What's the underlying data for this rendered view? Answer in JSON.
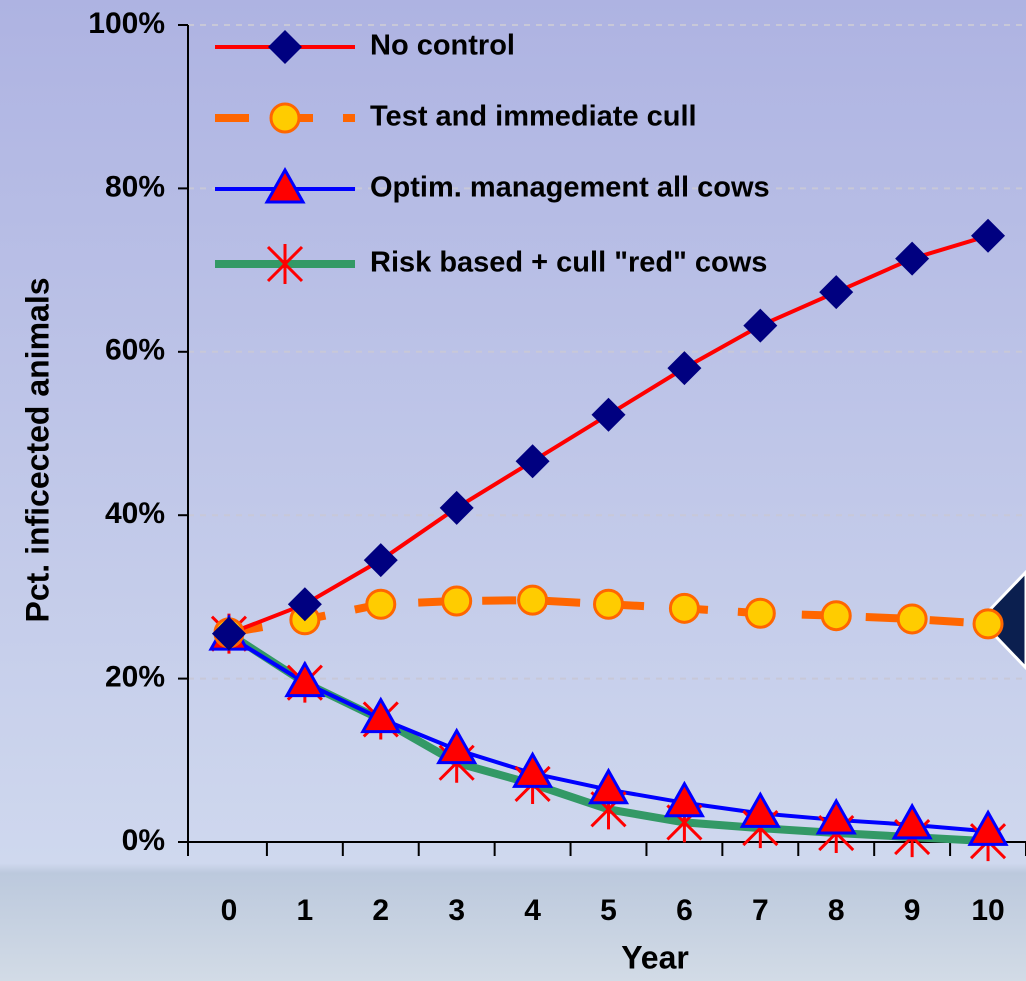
{
  "chart_data": {
    "type": "line",
    "y_label": "Pct. inficected animals",
    "x_label": "Year",
    "categories": [
      "0",
      "1",
      "2",
      "3",
      "4",
      "5",
      "6",
      "7",
      "8",
      "9",
      "10"
    ],
    "series": [
      {
        "name": "No control",
        "color": "#ff0000",
        "marker": "diamond",
        "marker_color": "#000080",
        "values": [
          25.5,
          29.1,
          34.5,
          40.9,
          46.6,
          52.3,
          58.0,
          63.2,
          67.3,
          71.4,
          74.2
        ]
      },
      {
        "name": "Test and immediate cull",
        "color": "#ff6600",
        "marker": "circle",
        "marker_color": "#ffcc00",
        "dashed": true,
        "values": [
          25.6,
          27.2,
          29.1,
          29.5,
          29.6,
          29.1,
          28.6,
          28.0,
          27.7,
          27.3,
          26.7
        ]
      },
      {
        "name": "Optim. management all cows",
        "color": "#0000ff",
        "marker": "triangle",
        "marker_color": "#ff0000",
        "values": [
          25.2,
          19.5,
          15.1,
          11.3,
          8.4,
          6.4,
          4.8,
          3.5,
          2.7,
          2.1,
          1.3
        ]
      },
      {
        "name": "Risk based + cull \"red\" cows",
        "color": "#339966",
        "marker": "star",
        "marker_color": "#ff0000",
        "values": [
          25.5,
          19.5,
          15.0,
          9.7,
          7.1,
          4.0,
          2.4,
          1.7,
          1.1,
          0.6,
          0.1
        ]
      }
    ],
    "ylim": [
      0,
      100
    ],
    "yticks": [
      {
        "value": 0,
        "label": "0%"
      },
      {
        "value": 20,
        "label": "20%"
      },
      {
        "value": 40,
        "label": "40%"
      },
      {
        "value": 60,
        "label": "60%"
      },
      {
        "value": 80,
        "label": "80%"
      },
      {
        "value": 100,
        "label": "100%"
      }
    ],
    "grid": true,
    "legend": "top-left"
  }
}
